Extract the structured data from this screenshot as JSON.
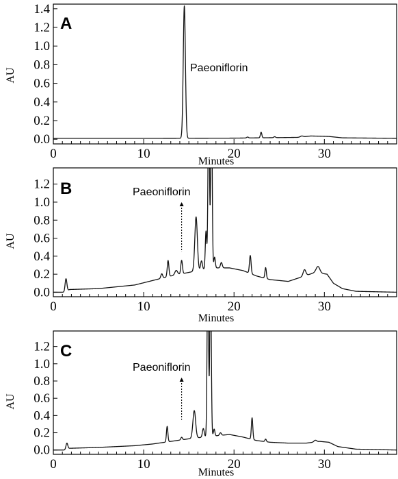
{
  "chart_data": [
    {
      "type": "line",
      "panel_label": "A",
      "xlabel": "Minutes",
      "ylabel": "AU",
      "xlim": [
        0,
        38
      ],
      "ylim": [
        -0.05,
        1.45
      ],
      "x_ticks": [
        0,
        10,
        20,
        30
      ],
      "y_ticks": [
        0.0,
        0.2,
        0.4,
        0.6,
        0.8,
        1.0,
        1.2,
        1.4
      ],
      "y_tick_labels": [
        "0.0",
        "0.2",
        "0.4",
        "0.6",
        "0.8",
        "1.0",
        "1.2",
        "1.4"
      ],
      "annotation": {
        "text": "Paeoniflorin",
        "x": 14.5,
        "y": 1.42,
        "arrow": false
      },
      "baseline": [
        [
          0,
          0.01
        ],
        [
          12,
          0.01
        ],
        [
          20,
          0.012
        ],
        [
          27,
          0.02
        ],
        [
          28.5,
          0.035
        ],
        [
          30.5,
          0.03
        ],
        [
          32,
          0.015
        ],
        [
          38,
          0.01
        ]
      ],
      "peaks": [
        {
          "x": 14.5,
          "height": 1.42,
          "width": 0.12
        },
        {
          "x": 21.5,
          "height": 0.01,
          "width": 0.1
        },
        {
          "x": 23.0,
          "height": 0.06,
          "width": 0.08
        },
        {
          "x": 24.5,
          "height": 0.01,
          "width": 0.1
        },
        {
          "x": 27.5,
          "height": 0.01,
          "width": 0.15
        }
      ]
    },
    {
      "type": "line",
      "panel_label": "B",
      "xlabel": "Minutes",
      "ylabel": "AU",
      "xlim": [
        0,
        38
      ],
      "ylim": [
        -0.05,
        1.38
      ],
      "x_ticks": [
        0,
        10,
        20,
        30
      ],
      "y_ticks": [
        0.0,
        0.2,
        0.4,
        0.6,
        0.8,
        1.0,
        1.2
      ],
      "y_tick_labels": [
        "0.0",
        "0.2",
        "0.4",
        "0.6",
        "0.8",
        "1.0",
        "1.2"
      ],
      "annotation": {
        "text": "Paeoniflorin",
        "x": 14.2,
        "y": 1.0,
        "arrow": true,
        "arrow_to": 0.45
      },
      "baseline": [
        [
          0,
          0.0
        ],
        [
          1.2,
          0.0
        ],
        [
          1.8,
          0.03
        ],
        [
          5,
          0.04
        ],
        [
          9,
          0.08
        ],
        [
          11,
          0.13
        ],
        [
          13,
          0.18
        ],
        [
          15,
          0.22
        ],
        [
          17.5,
          0.27
        ],
        [
          19.5,
          0.27
        ],
        [
          21,
          0.24
        ],
        [
          22.5,
          0.18
        ],
        [
          24,
          0.14
        ],
        [
          26,
          0.12
        ],
        [
          27.5,
          0.17
        ],
        [
          29,
          0.22
        ],
        [
          30.3,
          0.2
        ],
        [
          31,
          0.1
        ],
        [
          32,
          0.04
        ],
        [
          33.5,
          0.01
        ],
        [
          38,
          0.0
        ]
      ],
      "peaks": [
        {
          "x": 1.4,
          "height": 0.14,
          "width": 0.1
        },
        {
          "x": 12.0,
          "height": 0.05,
          "width": 0.1
        },
        {
          "x": 12.7,
          "height": 0.18,
          "width": 0.09
        },
        {
          "x": 13.6,
          "height": 0.05,
          "width": 0.15
        },
        {
          "x": 14.2,
          "height": 0.15,
          "width": 0.09
        },
        {
          "x": 15.8,
          "height": 0.6,
          "width": 0.14
        },
        {
          "x": 16.4,
          "height": 0.1,
          "width": 0.1
        },
        {
          "x": 16.9,
          "height": 0.42,
          "width": 0.08
        },
        {
          "x": 17.2,
          "height": 2.0,
          "width": 0.08
        },
        {
          "x": 17.5,
          "height": 2.0,
          "width": 0.08
        },
        {
          "x": 17.85,
          "height": 0.12,
          "width": 0.08
        },
        {
          "x": 18.6,
          "height": 0.06,
          "width": 0.1
        },
        {
          "x": 21.8,
          "height": 0.2,
          "width": 0.09
        },
        {
          "x": 23.5,
          "height": 0.12,
          "width": 0.08
        },
        {
          "x": 27.8,
          "height": 0.07,
          "width": 0.15
        },
        {
          "x": 29.3,
          "height": 0.07,
          "width": 0.2
        }
      ]
    },
    {
      "type": "line",
      "panel_label": "C",
      "xlabel": "Minutes",
      "ylabel": "AU",
      "xlim": [
        0,
        38
      ],
      "ylim": [
        -0.05,
        1.38
      ],
      "x_ticks": [
        0,
        10,
        20,
        30
      ],
      "y_ticks": [
        0.0,
        0.2,
        0.4,
        0.6,
        0.8,
        1.0,
        1.2
      ],
      "y_tick_labels": [
        "0.0",
        "0.2",
        "0.4",
        "0.6",
        "0.8",
        "1.0",
        "1.2"
      ],
      "annotation": {
        "text": "Paeoniflorin",
        "x": 14.2,
        "y": 1.0,
        "arrow": true,
        "arrow_to": 0.35
      },
      "baseline": [
        [
          0,
          0.0
        ],
        [
          1.2,
          0.0
        ],
        [
          1.8,
          0.02
        ],
        [
          5,
          0.03
        ],
        [
          9,
          0.05
        ],
        [
          11,
          0.07
        ],
        [
          13,
          0.1
        ],
        [
          15,
          0.13
        ],
        [
          17.5,
          0.16
        ],
        [
          19.5,
          0.18
        ],
        [
          21,
          0.15
        ],
        [
          22.5,
          0.11
        ],
        [
          24,
          0.09
        ],
        [
          26,
          0.08
        ],
        [
          28,
          0.08
        ],
        [
          29.5,
          0.1
        ],
        [
          30.5,
          0.09
        ],
        [
          31.5,
          0.04
        ],
        [
          33.5,
          0.01
        ],
        [
          38,
          0.0
        ]
      ],
      "peaks": [
        {
          "x": 1.5,
          "height": 0.07,
          "width": 0.1
        },
        {
          "x": 12.6,
          "height": 0.18,
          "width": 0.08
        },
        {
          "x": 14.2,
          "height": 0.03,
          "width": 0.09
        },
        {
          "x": 15.6,
          "height": 0.32,
          "width": 0.15
        },
        {
          "x": 16.6,
          "height": 0.1,
          "width": 0.1
        },
        {
          "x": 17.1,
          "height": 2.0,
          "width": 0.08
        },
        {
          "x": 17.4,
          "height": 2.0,
          "width": 0.08
        },
        {
          "x": 17.8,
          "height": 0.08,
          "width": 0.08
        },
        {
          "x": 18.5,
          "height": 0.03,
          "width": 0.1
        },
        {
          "x": 22.0,
          "height": 0.25,
          "width": 0.08
        },
        {
          "x": 23.5,
          "height": 0.03,
          "width": 0.08
        },
        {
          "x": 29.0,
          "height": 0.02,
          "width": 0.15
        }
      ]
    }
  ]
}
